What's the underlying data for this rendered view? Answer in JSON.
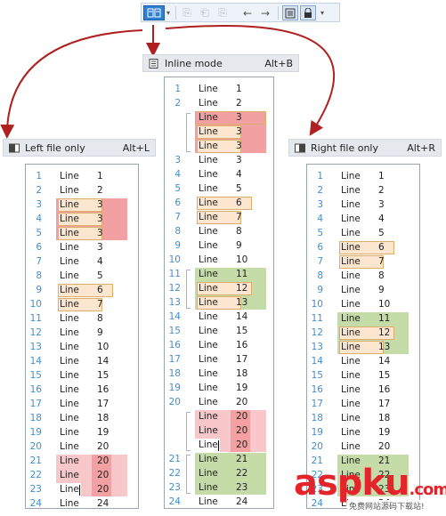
{
  "modes": {
    "inline": {
      "label": "Inline mode",
      "shortcut": "Alt+B"
    },
    "left": {
      "label": "Left file only",
      "shortcut": "Alt+L"
    },
    "right": {
      "label": "Right file only",
      "shortcut": "Alt+R"
    }
  },
  "word": "Line",
  "panels": {
    "left": {
      "nums": [
        "1",
        "2",
        "3",
        "4",
        "5",
        "6",
        "7",
        "8",
        "9",
        "10",
        "11",
        "12",
        "13",
        "14",
        "15",
        "16",
        "17",
        "18",
        "19",
        "20",
        "21",
        "22",
        "23",
        "24"
      ],
      "values": [
        "1",
        "2",
        "3",
        "3",
        "3",
        "3",
        "4",
        "5",
        "6",
        "7",
        "8",
        "9",
        "10",
        "14",
        "15",
        "16",
        "17",
        "18",
        "19",
        "20",
        "20",
        "20",
        "20",
        "24"
      ]
    },
    "inline": {
      "nums": [
        "1",
        "2",
        "",
        "",
        "",
        "3",
        "4",
        "5",
        "6",
        "7",
        "8",
        "9",
        "10",
        "11",
        "12",
        "13",
        "14",
        "15",
        "16",
        "17",
        "18",
        "19",
        "20",
        "",
        "",
        "",
        "21",
        "22",
        "23",
        "24"
      ],
      "values": [
        "1",
        "2",
        "3",
        "3",
        "3",
        "3",
        "4",
        "5",
        "6",
        "7",
        "8",
        "9",
        "10",
        "11",
        "12",
        "13",
        "14",
        "15",
        "16",
        "17",
        "18",
        "19",
        "20",
        "20",
        "20",
        "20",
        "21",
        "22",
        "23",
        "24"
      ]
    },
    "right": {
      "nums": [
        "1",
        "2",
        "3",
        "4",
        "5",
        "6",
        "7",
        "8",
        "9",
        "10",
        "11",
        "12",
        "13",
        "14",
        "15",
        "16",
        "17",
        "18",
        "19",
        "20",
        "21",
        "22",
        "23",
        "24"
      ],
      "values": [
        "1",
        "2",
        "3",
        "4",
        "5",
        "6",
        "7",
        "8",
        "9",
        "10",
        "11",
        "12",
        "13",
        "14",
        "15",
        "16",
        "17",
        "18",
        "19",
        "20",
        "21",
        "22",
        "23",
        "24"
      ]
    }
  },
  "watermark": {
    "brand": "aspku",
    "tld": ".com",
    "sub": "免费网站源码下载站!"
  },
  "colors": {
    "accent": "#2f7fd3",
    "arrow": "#b02020",
    "number": "#3e8fd6",
    "removed": "#f3a0a2",
    "added": "#c5dca8",
    "moved": "#fde6cf"
  }
}
